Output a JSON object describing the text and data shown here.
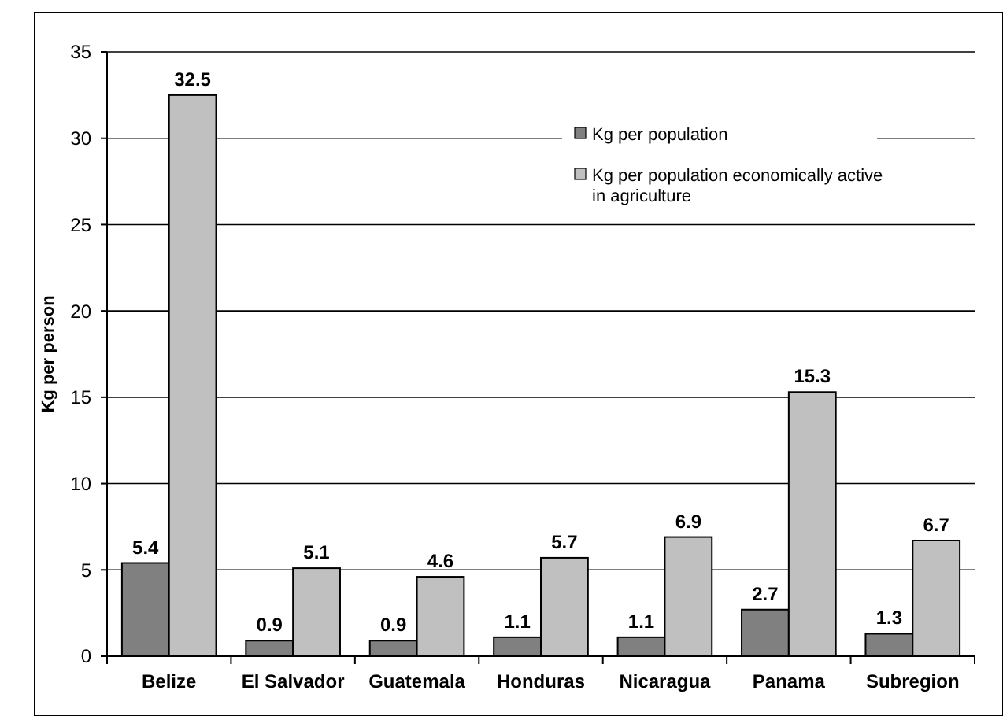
{
  "chart_data": {
    "type": "bar",
    "ylabel": "Kg per person",
    "categories": [
      "Belize",
      "El Salvador",
      "Guatemala",
      "Honduras",
      "Nicaragua",
      "Panama",
      "Subregion"
    ],
    "series": [
      {
        "name": "Kg per population",
        "color": "#808080",
        "values": [
          5.4,
          0.9,
          0.9,
          1.1,
          1.1,
          2.7,
          1.3
        ]
      },
      {
        "name": "Kg per population economically active in agriculture",
        "color": "#c0c0c0",
        "values": [
          32.5,
          5.1,
          4.6,
          5.7,
          6.9,
          15.3,
          6.7
        ]
      }
    ],
    "ylim": [
      0,
      35
    ],
    "yticks": [
      0,
      5,
      10,
      15,
      20,
      25,
      30,
      35
    ],
    "grid": "y",
    "data_labels": true,
    "legend": "top right"
  }
}
